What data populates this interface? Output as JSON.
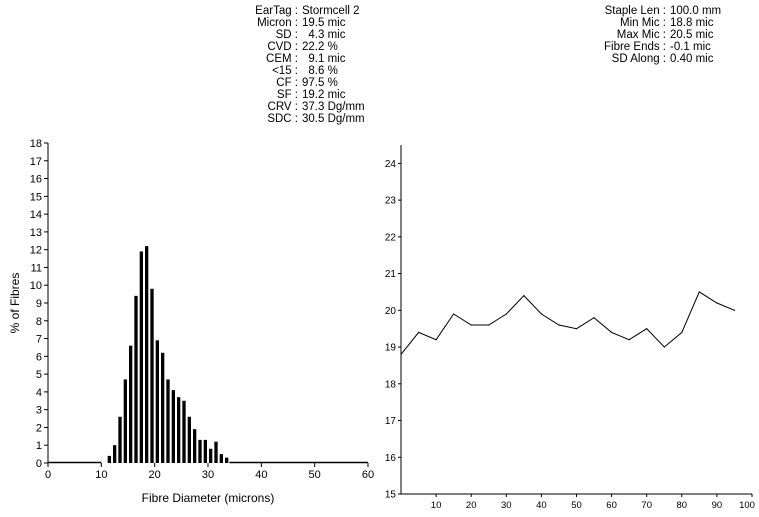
{
  "stats_left": [
    {
      "label": "EarTag :",
      "value": "Stormcell 2"
    },
    {
      "label": "Micron :",
      "value": "19.5 mic"
    },
    {
      "label": "SD :",
      "value": "  4.3 mic"
    },
    {
      "label": "CVD :",
      "value": "22.2 %"
    },
    {
      "label": "CEM :",
      "value": "  9.1 mic"
    },
    {
      "label": "<15 :",
      "value": "  8.6 %"
    },
    {
      "label": "CF :",
      "value": "97.5 %"
    },
    {
      "label": "SF :",
      "value": "19.2 mic"
    },
    {
      "label": "CRV :",
      "value": "37.3 Dg/mm"
    },
    {
      "label": "SDC :",
      "value": "30.5 Dg/mm"
    }
  ],
  "stats_right": [
    {
      "label": "Staple Len :",
      "value": "100.0 mm"
    },
    {
      "label": "Min Mic :",
      "value": "18.8 mic"
    },
    {
      "label": "Max Mic :",
      "value": "20.5 mic"
    },
    {
      "label": "Fibre Ends :",
      "value": "-0.1 mic"
    },
    {
      "label": "SD Along :",
      "value": "0.40 mic"
    }
  ],
  "chart_data": [
    {
      "type": "bar",
      "xlabel": "Fibre Diameter (microns)",
      "ylabel": "% of Fibres",
      "xlim": [
        0,
        60
      ],
      "ylim": [
        0,
        18
      ],
      "xticks": [
        0,
        10,
        20,
        30,
        40,
        50,
        60
      ],
      "yticks": [
        0,
        1,
        2,
        3,
        4,
        5,
        6,
        7,
        8,
        9,
        10,
        11,
        12,
        13,
        14,
        15,
        16,
        17,
        18
      ],
      "x": [
        11,
        12,
        13,
        14,
        15,
        16,
        17,
        18,
        19,
        20,
        21,
        22,
        23,
        24,
        25,
        26,
        27,
        28,
        29,
        30,
        31,
        32,
        33
      ],
      "values": [
        0.4,
        1.0,
        2.6,
        4.7,
        6.6,
        9.4,
        11.9,
        12.2,
        9.8,
        6.9,
        6.2,
        4.7,
        4.1,
        3.7,
        3.5,
        2.6,
        1.9,
        1.3,
        1.3,
        0.8,
        1.2,
        0.5,
        0.3
      ],
      "baseline_x": [
        0,
        10,
        34,
        60
      ]
    },
    {
      "type": "line",
      "xlim": [
        0,
        100
      ],
      "ylim": [
        15,
        24.5
      ],
      "xticks": [
        10,
        20,
        30,
        40,
        50,
        60,
        70,
        80,
        90,
        100
      ],
      "yticks": [
        15,
        16,
        17,
        18,
        19,
        20,
        21,
        22,
        23,
        24
      ],
      "x": [
        0,
        5,
        10,
        15,
        20,
        25,
        30,
        35,
        40,
        45,
        50,
        55,
        60,
        65,
        70,
        75,
        80,
        85,
        90,
        95
      ],
      "y": [
        18.8,
        19.4,
        19.2,
        19.9,
        19.6,
        19.6,
        19.9,
        20.4,
        19.9,
        19.6,
        19.5,
        19.8,
        19.4,
        19.2,
        19.5,
        19.0,
        19.4,
        20.5,
        20.2,
        20.0
      ]
    }
  ]
}
